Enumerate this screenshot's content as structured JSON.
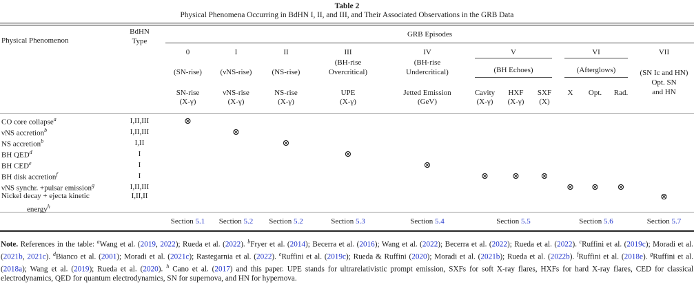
{
  "caption": {
    "label": "Table 2",
    "title": "Physical Phenomena Occurring in BdHN I, II, and III, and Their Associated Observations in the GRB Data"
  },
  "colors": {
    "link_blue": "#2336cc"
  },
  "header": {
    "phenomenon_label": "Physical Phenomenon",
    "bdhn_type_line1": "BdHN",
    "bdhn_type_line2": "Type",
    "grb_episodes_label": "GRB Episodes",
    "episodes": [
      {
        "id": "0",
        "num": "0",
        "name": [
          "(SN-rise)"
        ],
        "obs": [
          "SN-rise",
          "(X-γ)"
        ]
      },
      {
        "id": "I",
        "num": "I",
        "name": [
          "(νNS-rise)"
        ],
        "obs": [
          "νNS-rise",
          "(X-γ)"
        ]
      },
      {
        "id": "II",
        "num": "II",
        "name": [
          "(NS-rise)"
        ],
        "obs": [
          "NS-rise",
          "(X-γ)"
        ]
      },
      {
        "id": "III",
        "num": "III",
        "name": [
          "(BH-rise",
          "Overcritical)"
        ],
        "obs": [
          "UPE",
          "(X-γ)"
        ]
      },
      {
        "id": "IV",
        "num": "IV",
        "name": [
          "(BH-rise",
          "Undercritical)"
        ],
        "obs": [
          "Jetted Emission",
          "(GeV)"
        ]
      },
      {
        "id": "V",
        "num": "V",
        "name": [
          "(BH Echoes)"
        ],
        "subcols": [
          {
            "id": "cavity",
            "obs": [
              "Cavity",
              "(X-γ)"
            ]
          },
          {
            "id": "hxf",
            "obs": [
              "HXF",
              "(X-γ)"
            ]
          },
          {
            "id": "sxf",
            "obs": [
              "SXF",
              "(X)"
            ]
          }
        ]
      },
      {
        "id": "VI",
        "num": "VI",
        "name": [
          "(Afterglows)"
        ],
        "subcols": [
          {
            "id": "x",
            "obs": [
              "X"
            ]
          },
          {
            "id": "opt",
            "obs": [
              "Opt."
            ]
          },
          {
            "id": "rad",
            "obs": [
              "Rad."
            ]
          }
        ]
      },
      {
        "id": "VII",
        "num": "VII",
        "name": [
          "(SN Ic and HN)",
          "Opt. SN",
          "and HN"
        ]
      }
    ]
  },
  "mark_symbol": "⊗",
  "rows": [
    {
      "label_lines": [
        "CO core collapse"
      ],
      "sup": "a",
      "type": "I,II,III",
      "marks": [
        "0"
      ]
    },
    {
      "label_lines": [
        "νNS accretion"
      ],
      "sup": "b",
      "type": "I,II,III",
      "marks": [
        "I"
      ]
    },
    {
      "label_lines": [
        "NS accretion"
      ],
      "sup": "b",
      "type": "I,II",
      "marks": [
        "II"
      ]
    },
    {
      "label_lines": [
        "BH QED"
      ],
      "sup": "d",
      "type": "I",
      "marks": [
        "III"
      ]
    },
    {
      "label_lines": [
        "BH CED"
      ],
      "sup": "e",
      "type": "I",
      "marks": [
        "IV"
      ]
    },
    {
      "label_lines": [
        "BH disk accretion"
      ],
      "sup": "f",
      "type": "I",
      "marks": [
        "cavity",
        "hxf",
        "sxf"
      ]
    },
    {
      "label_lines": [
        "νNS synchr. +pulsar emission"
      ],
      "sup": "g",
      "type": "I,II,III",
      "marks": [
        "x",
        "opt",
        "rad"
      ]
    },
    {
      "label_lines": [
        "Nickel decay + ejecta kinetic",
        "energy"
      ],
      "sup": "h",
      "type": "I,II,II",
      "marks": [
        "VII"
      ]
    }
  ],
  "sections": [
    {
      "prefix": "Section",
      "number": "5.1",
      "col": "0"
    },
    {
      "prefix": "Section",
      "number": "5.2",
      "col": "I"
    },
    {
      "prefix": "Section",
      "number": "5.2",
      "col": "II"
    },
    {
      "prefix": "Section",
      "number": "5.3",
      "col": "III"
    },
    {
      "prefix": "Section",
      "number": "5.4",
      "col": "IV"
    },
    {
      "prefix": "Section",
      "number": "5.5",
      "col": "V"
    },
    {
      "prefix": "Section",
      "number": "5.6",
      "col": "VI"
    },
    {
      "prefix": "Section",
      "number": "5.7",
      "col": "VII"
    }
  ],
  "footnote": [
    {
      "t": "Note.",
      "b": 1
    },
    {
      "t": " References in the table: "
    },
    {
      "t": "a",
      "sup": 1
    },
    {
      "t": "Wang et al. ("
    },
    {
      "t": "2019",
      "l": 1
    },
    {
      "t": ", "
    },
    {
      "t": "2022",
      "l": 1
    },
    {
      "t": "); Rueda et al. ("
    },
    {
      "t": "2022",
      "l": 1
    },
    {
      "t": "). "
    },
    {
      "t": "b",
      "sup": 1
    },
    {
      "t": "Fryer et al. ("
    },
    {
      "t": "2014",
      "l": 1
    },
    {
      "t": "); Becerra et al. ("
    },
    {
      "t": "2016",
      "l": 1
    },
    {
      "t": "); Wang et al. ("
    },
    {
      "t": "2022",
      "l": 1
    },
    {
      "t": "); Becerra et al. ("
    },
    {
      "t": "2022",
      "l": 1
    },
    {
      "t": "); Rueda et al. ("
    },
    {
      "t": "2022",
      "l": 1
    },
    {
      "t": "). "
    },
    {
      "t": "c",
      "sup": 1
    },
    {
      "t": "Ruffini et al. ("
    },
    {
      "t": "2019c",
      "l": 1
    },
    {
      "t": "); Moradi et al. ("
    },
    {
      "t": "2021b",
      "l": 1
    },
    {
      "t": ", "
    },
    {
      "t": "2021c",
      "l": 1
    },
    {
      "t": "). "
    },
    {
      "t": "d",
      "sup": 1
    },
    {
      "t": "Bianco et al. ("
    },
    {
      "t": "2001",
      "l": 1
    },
    {
      "t": "); Moradi et al. ("
    },
    {
      "t": "2021c",
      "l": 1
    },
    {
      "t": "); Rastegarnia et al. ("
    },
    {
      "t": "2022",
      "l": 1
    },
    {
      "t": "). "
    },
    {
      "t": "e",
      "sup": 1
    },
    {
      "t": "Ruffini et al. ("
    },
    {
      "t": "2019c",
      "l": 1
    },
    {
      "t": "); Rueda & Ruffini ("
    },
    {
      "t": "2020",
      "l": 1
    },
    {
      "t": "); Moradi et al. ("
    },
    {
      "t": "2021b",
      "l": 1
    },
    {
      "t": "); Rueda et al. ("
    },
    {
      "t": "2022b",
      "l": 1
    },
    {
      "t": "). "
    },
    {
      "t": "f",
      "sup": 1
    },
    {
      "t": "Ruffini et al. ("
    },
    {
      "t": "2018e",
      "l": 1
    },
    {
      "t": "). "
    },
    {
      "t": "g",
      "sup": 1
    },
    {
      "t": "Ruffini et al. ("
    },
    {
      "t": "2018a",
      "l": 1
    },
    {
      "t": "); Wang et al. ("
    },
    {
      "t": "2019",
      "l": 1
    },
    {
      "t": "); Rueda et al. ("
    },
    {
      "t": "2020",
      "l": 1
    },
    {
      "t": "). "
    },
    {
      "t": "h",
      "sup": 1
    },
    {
      "t": " Cano et al. ("
    },
    {
      "t": "2017",
      "l": 1
    },
    {
      "t": ") and this paper. UPE stands for ultrarelativistic prompt emission, SXFs for soft X-ray flares, HXFs for hard X-ray flares, CED for classical electrodynamics, QED for quantum electrodynamics, SN for supernova, and HN for hypernova."
    }
  ]
}
